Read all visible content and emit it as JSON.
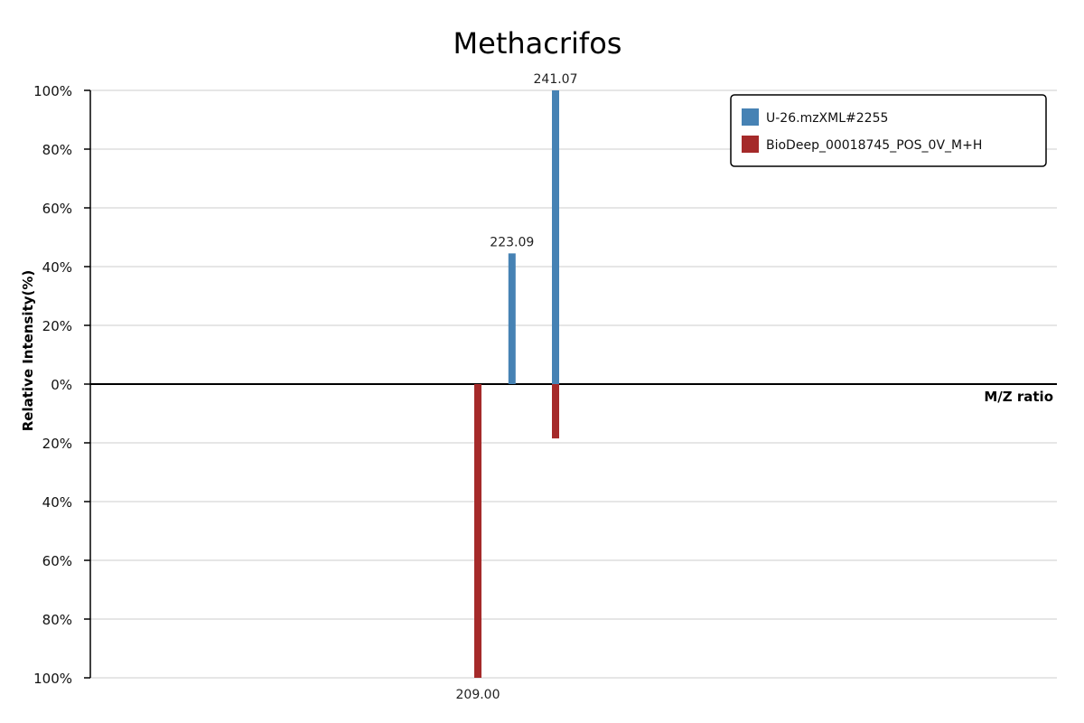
{
  "chart_data": {
    "type": "bar",
    "title": "Methacrifos",
    "xlabel": "M/Z ratio",
    "ylabel": "Relative Intensity(%)",
    "ylim": [
      -100,
      100
    ],
    "grid": true,
    "legend_position": "top-right",
    "y_ticks": [
      {
        "value": 100,
        "label": "100%"
      },
      {
        "value": 80,
        "label": "80%"
      },
      {
        "value": 60,
        "label": "60%"
      },
      {
        "value": 40,
        "label": "40%"
      },
      {
        "value": 20,
        "label": "20%"
      },
      {
        "value": 0,
        "label": "0%"
      },
      {
        "value": -20,
        "label": "20%"
      },
      {
        "value": -40,
        "label": "40%"
      },
      {
        "value": -60,
        "label": "60%"
      },
      {
        "value": -80,
        "label": "80%"
      },
      {
        "value": -100,
        "label": "100%"
      }
    ],
    "series": [
      {
        "name": "U-26.mzXML#2255",
        "color": "#4682b4",
        "direction": "up",
        "peaks": [
          {
            "mz": 223.09,
            "intensity": 44.5,
            "label": "223.09"
          },
          {
            "mz": 241.07,
            "intensity": 100,
            "label": "241.07"
          }
        ]
      },
      {
        "name": "BioDeep_00018745_POS_0V_M+H",
        "color": "#a52a2a",
        "direction": "down",
        "peaks": [
          {
            "mz": 209.0,
            "intensity": 100,
            "label": "209.00"
          },
          {
            "mz": 241.07,
            "intensity": 18.5,
            "label": ""
          }
        ]
      }
    ]
  }
}
